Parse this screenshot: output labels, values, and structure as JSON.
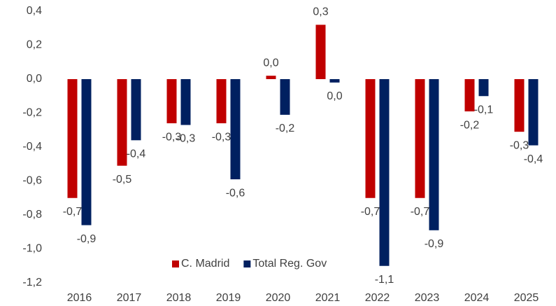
{
  "chart_data": {
    "type": "bar",
    "categories": [
      "2016",
      "2017",
      "2018",
      "2019",
      "2020",
      "2021",
      "2022",
      "2023",
      "2024",
      "2025"
    ],
    "series": [
      {
        "name": "C. Madrid",
        "color": "#c00000",
        "values": [
          -0.7,
          -0.51,
          -0.26,
          -0.26,
          0.02,
          0.32,
          -0.7,
          -0.7,
          -0.19,
          -0.31
        ],
        "value_labels": [
          "-0,7",
          "-0,5",
          "-0,3",
          "-0,3",
          "0,0",
          "0,3",
          "-0,7",
          "-0,7",
          "-0,2",
          "-0,3"
        ]
      },
      {
        "name": "Total Reg. Gov",
        "color": "#002060",
        "values": [
          -0.86,
          -0.36,
          -0.27,
          -0.59,
          -0.21,
          -0.02,
          -1.1,
          -0.89,
          -0.1,
          -0.39
        ],
        "value_labels": [
          "-0,9",
          "-0,4",
          "-0,3",
          "-0,6",
          "-0,2",
          "0,0",
          "-1,1",
          "-0,9",
          "-0,1",
          "-0,4"
        ]
      }
    ],
    "ylim": [
      -1.2,
      0.4
    ],
    "yticks": [
      {
        "value": 0.4,
        "label": "0,4"
      },
      {
        "value": 0.2,
        "label": "0,2"
      },
      {
        "value": 0,
        "label": "0,0"
      },
      {
        "value": -0.2,
        "label": "-0,2"
      },
      {
        "value": -0.4,
        "label": "-0,4"
      },
      {
        "value": -0.6,
        "label": "-0,6"
      },
      {
        "value": -0.8,
        "label": "-0,8"
      },
      {
        "value": -1,
        "label": "-1,0"
      },
      {
        "value": -1.2,
        "label": "-1,2"
      }
    ],
    "grid": false,
    "legend": "bottom"
  }
}
